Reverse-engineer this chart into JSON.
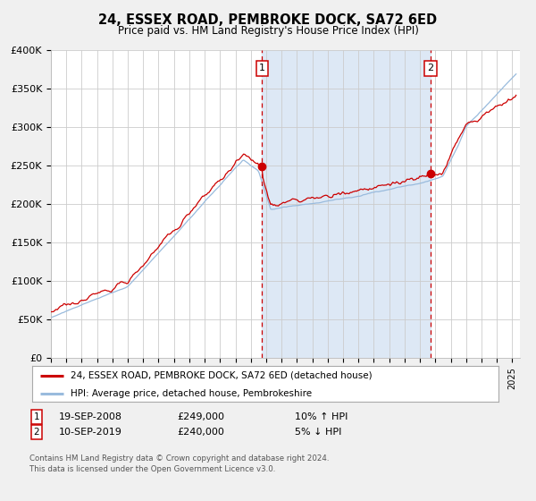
{
  "title": "24, ESSEX ROAD, PEMBROKE DOCK, SA72 6ED",
  "subtitle": "Price paid vs. HM Land Registry's House Price Index (HPI)",
  "background_color": "#f0f0f0",
  "plot_bg_color": "#ffffff",
  "grid_color": "#cccccc",
  "red_line_color": "#cc0000",
  "blue_line_color": "#99bbdd",
  "shade_color": "#dde8f5",
  "marker1_date": 2008.72,
  "marker1_value": 249000,
  "marker1_label": "1",
  "marker2_date": 2019.69,
  "marker2_value": 240000,
  "marker2_label": "2",
  "xmin": 1995.0,
  "xmax": 2025.5,
  "ymin": 0,
  "ymax": 400000,
  "yticks": [
    0,
    50000,
    100000,
    150000,
    200000,
    250000,
    300000,
    350000,
    400000
  ],
  "ytick_labels": [
    "£0",
    "£50K",
    "£100K",
    "£150K",
    "£200K",
    "£250K",
    "£300K",
    "£350K",
    "£400K"
  ],
  "legend_label1": "24, ESSEX ROAD, PEMBROKE DOCK, SA72 6ED (detached house)",
  "legend_label2": "HPI: Average price, detached house, Pembrokeshire",
  "row1_num": "1",
  "row1_date": "19-SEP-2008",
  "row1_price": "£249,000",
  "row1_hpi": "10% ↑ HPI",
  "row2_num": "2",
  "row2_date": "10-SEP-2019",
  "row2_price": "£240,000",
  "row2_hpi": "5% ↓ HPI",
  "footnote1": "Contains HM Land Registry data © Crown copyright and database right 2024.",
  "footnote2": "This data is licensed under the Open Government Licence v3.0."
}
